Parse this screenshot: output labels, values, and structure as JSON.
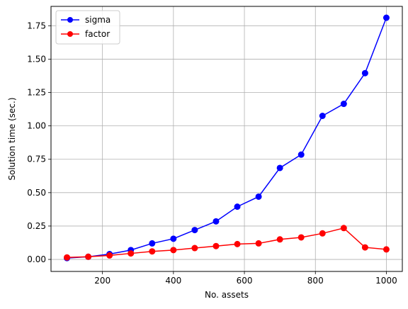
{
  "chart_data": {
    "type": "line",
    "title": "",
    "xlabel": "No. assets",
    "ylabel": "Solution time (sec.)",
    "xlim": [
      55,
      1045
    ],
    "ylim": [
      -0.09,
      1.895
    ],
    "xticks": [
      200,
      400,
      600,
      800,
      1000
    ],
    "yticks": [
      0.0,
      0.25,
      0.5,
      0.75,
      1.0,
      1.25,
      1.5,
      1.75
    ],
    "xtick_labels": [
      "200",
      "400",
      "600",
      "800",
      "1000"
    ],
    "ytick_labels": [
      "0.00",
      "0.25",
      "0.50",
      "0.75",
      "1.00",
      "1.25",
      "1.50",
      "1.75"
    ],
    "grid": true,
    "legend_position": "top-left",
    "x": [
      100,
      160,
      220,
      280,
      340,
      400,
      460,
      520,
      580,
      640,
      700,
      760,
      820,
      880,
      940,
      1000
    ],
    "series": [
      {
        "name": "sigma",
        "color": "#0000ff",
        "values": [
          0.01,
          0.02,
          0.04,
          0.07,
          0.12,
          0.155,
          0.22,
          0.285,
          0.395,
          0.47,
          0.685,
          0.785,
          1.075,
          1.165,
          1.395,
          1.81
        ]
      },
      {
        "name": "factor",
        "color": "#ff0000",
        "values": [
          0.015,
          0.02,
          0.03,
          0.045,
          0.06,
          0.07,
          0.085,
          0.1,
          0.115,
          0.12,
          0.15,
          0.165,
          0.195,
          0.235,
          0.09,
          0.075
        ]
      }
    ]
  }
}
